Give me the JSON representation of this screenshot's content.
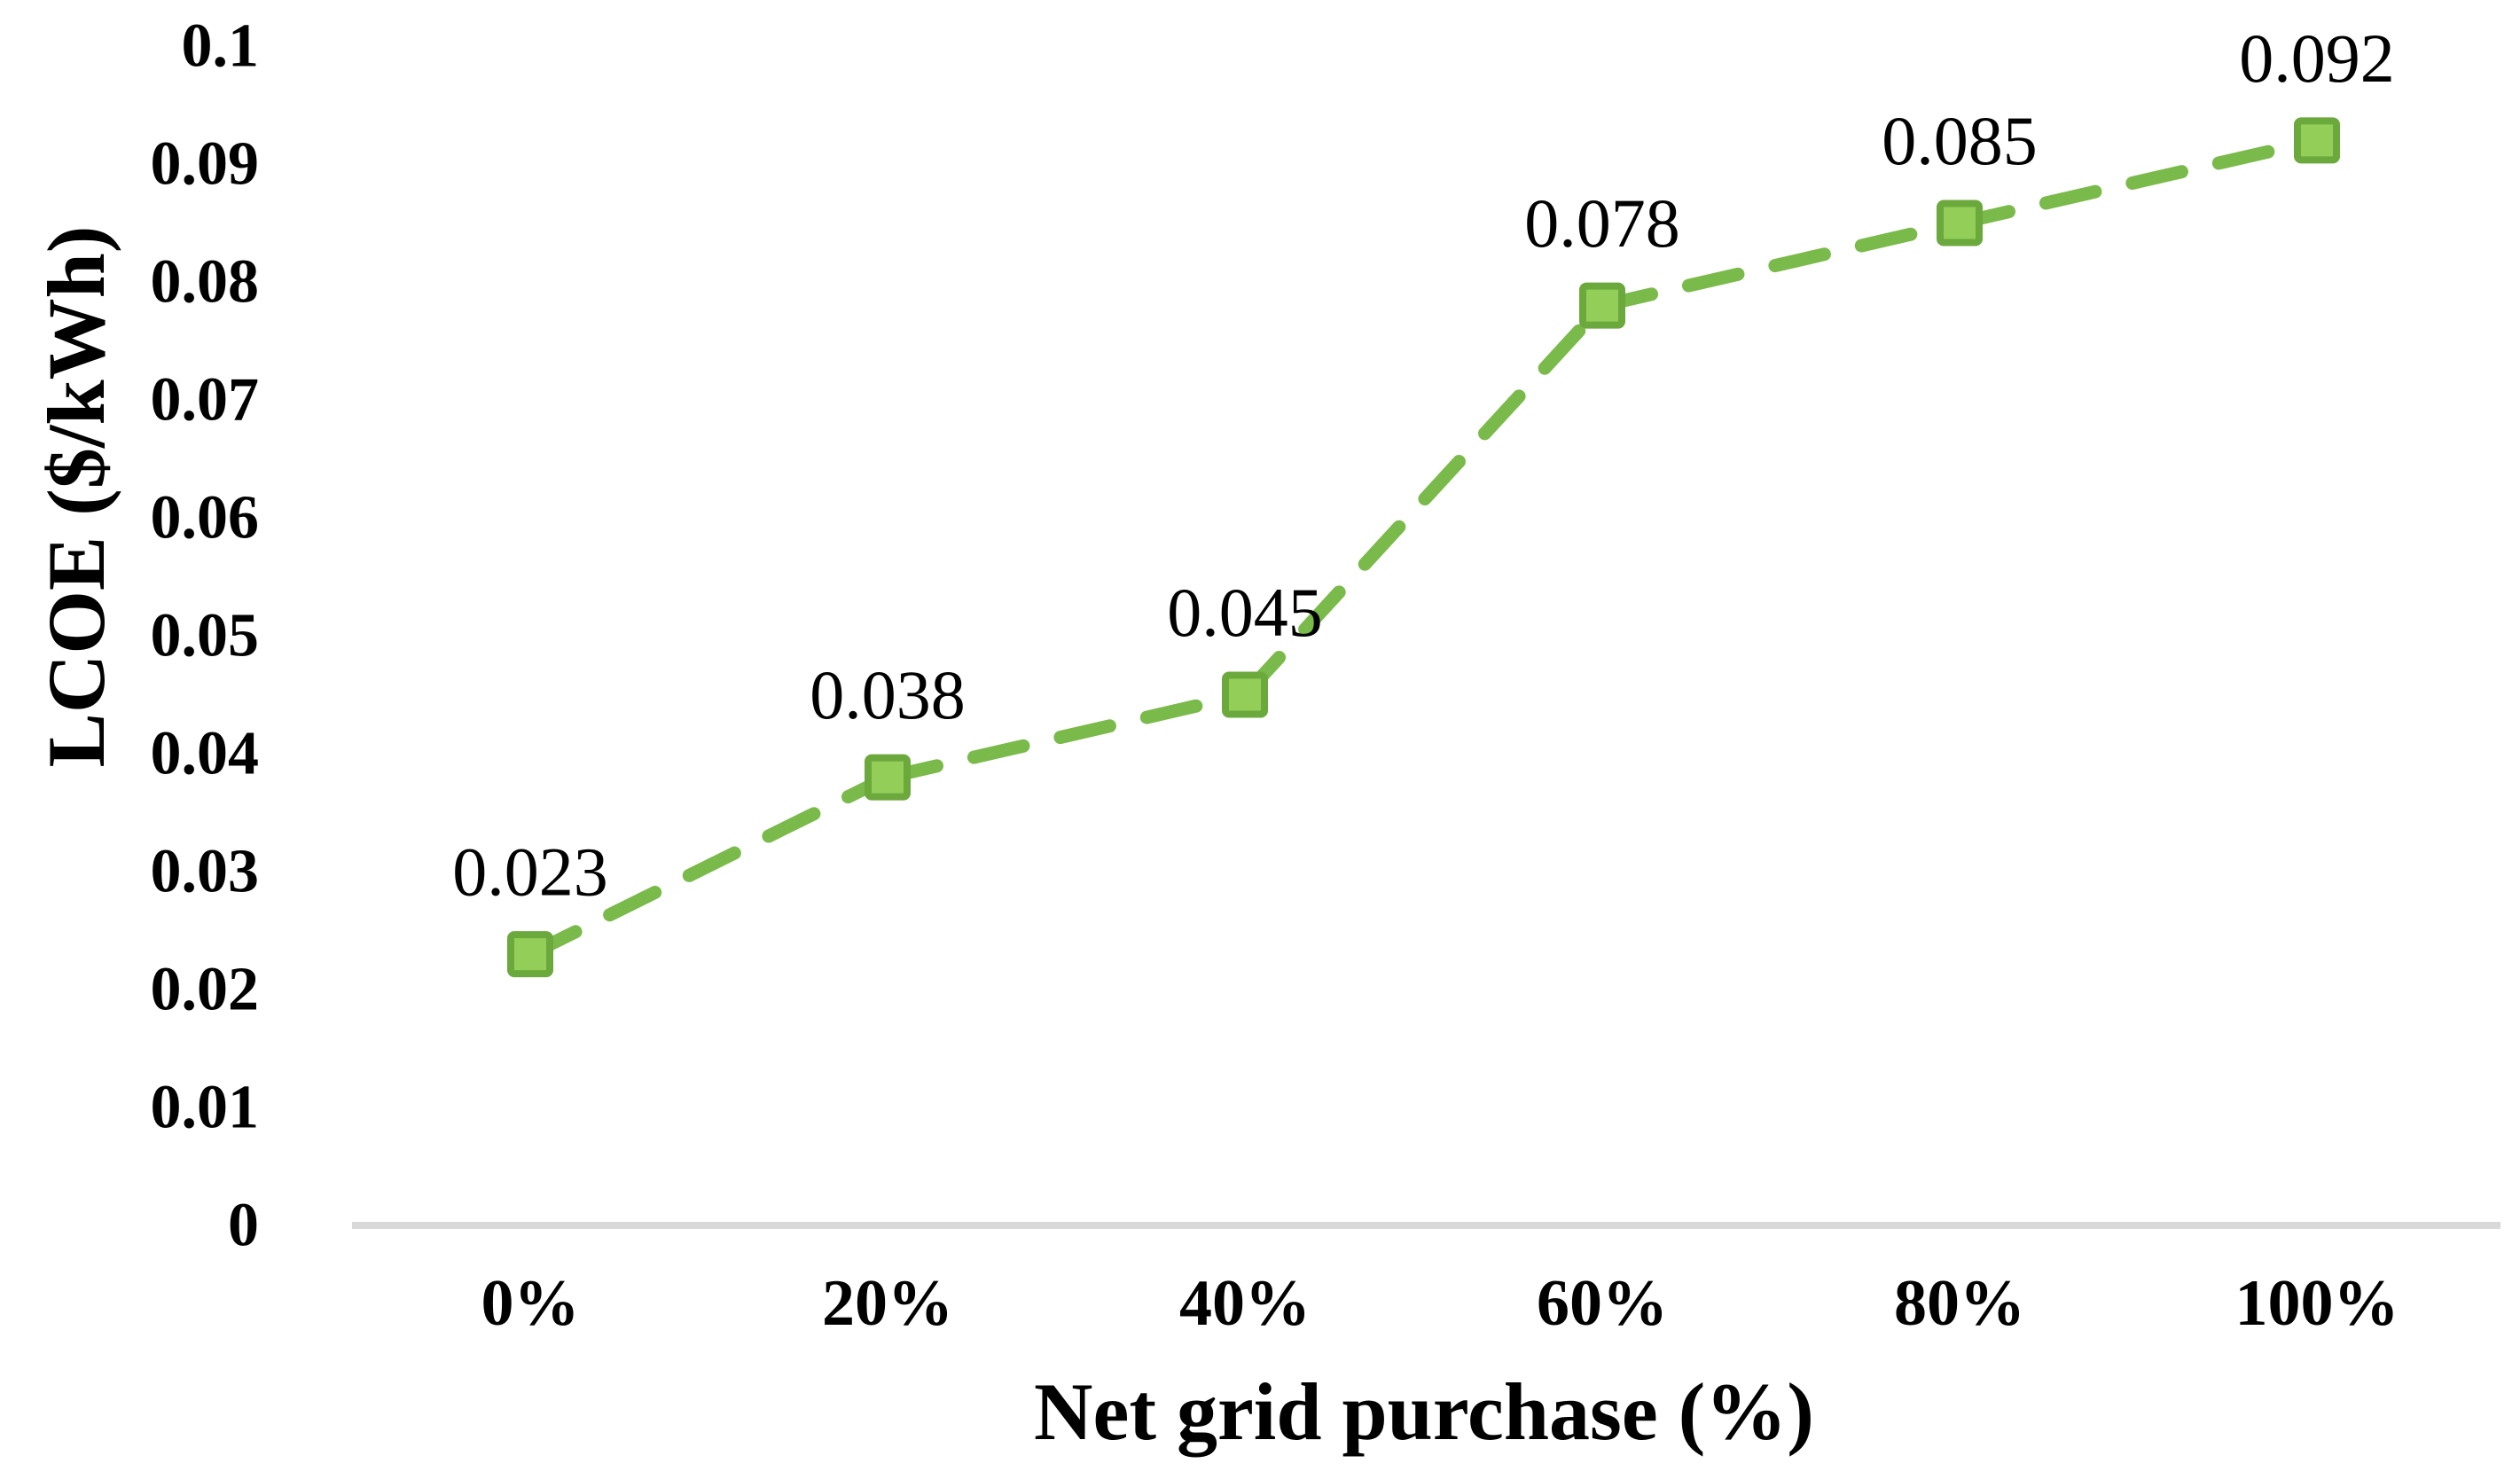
{
  "page": {
    "background": "#FFFFFF"
  },
  "chart_data": {
    "type": "line",
    "categories": [
      "0%",
      "20%",
      "40%",
      "60%",
      "80%",
      "100%"
    ],
    "series": [
      {
        "name": "LCOE",
        "values": [
          0.023,
          0.038,
          0.045,
          0.078,
          0.085,
          0.092
        ],
        "line_style": "dashed",
        "marker": "square",
        "line_color": "#7ABA4A",
        "marker_fill": "#92CE58",
        "marker_border": "#6CA93C"
      }
    ],
    "data_labels": [
      "0.023",
      "0.038",
      "0.045",
      "0.078",
      "0.085",
      "0.092"
    ],
    "xlabel": "Net grid purchase (%)",
    "ylabel": "LCOE ($/kWh)",
    "ylim": [
      0,
      0.1
    ],
    "ytick_step": 0.01,
    "yticks": [
      "0",
      "0.01",
      "0.02",
      "0.03",
      "0.04",
      "0.05",
      "0.06",
      "0.07",
      "0.08",
      "0.09",
      "0.1"
    ],
    "grid": false,
    "legend_position": "none",
    "axis_line_color": "#D9D9D9",
    "text_color": "#000000"
  }
}
